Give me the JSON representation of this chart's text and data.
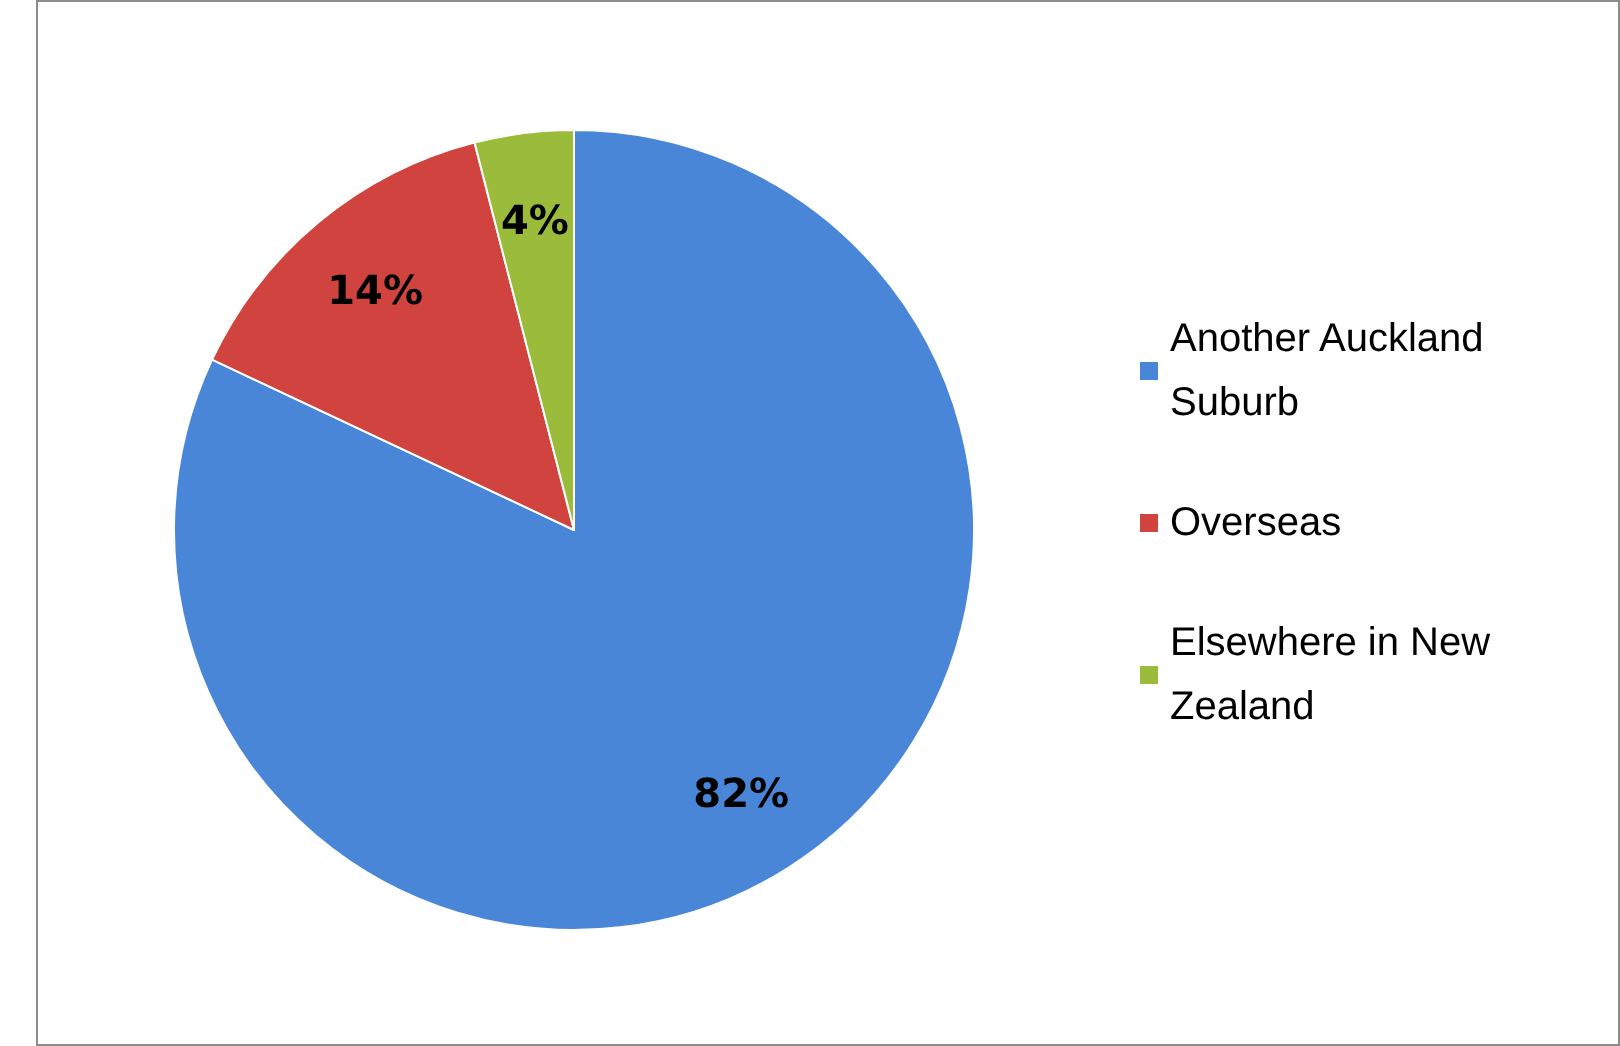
{
  "chart_data": {
    "type": "pie",
    "categories": [
      "Another Auckland Suburb",
      "Overseas",
      "Elsewhere in New Zealand"
    ],
    "values": [
      82,
      14,
      4
    ],
    "colors": [
      "#4a86d8",
      "#d0433f",
      "#9bbb3a"
    ],
    "value_labels": [
      "82%",
      "14%",
      "4%"
    ],
    "legend": "right"
  }
}
